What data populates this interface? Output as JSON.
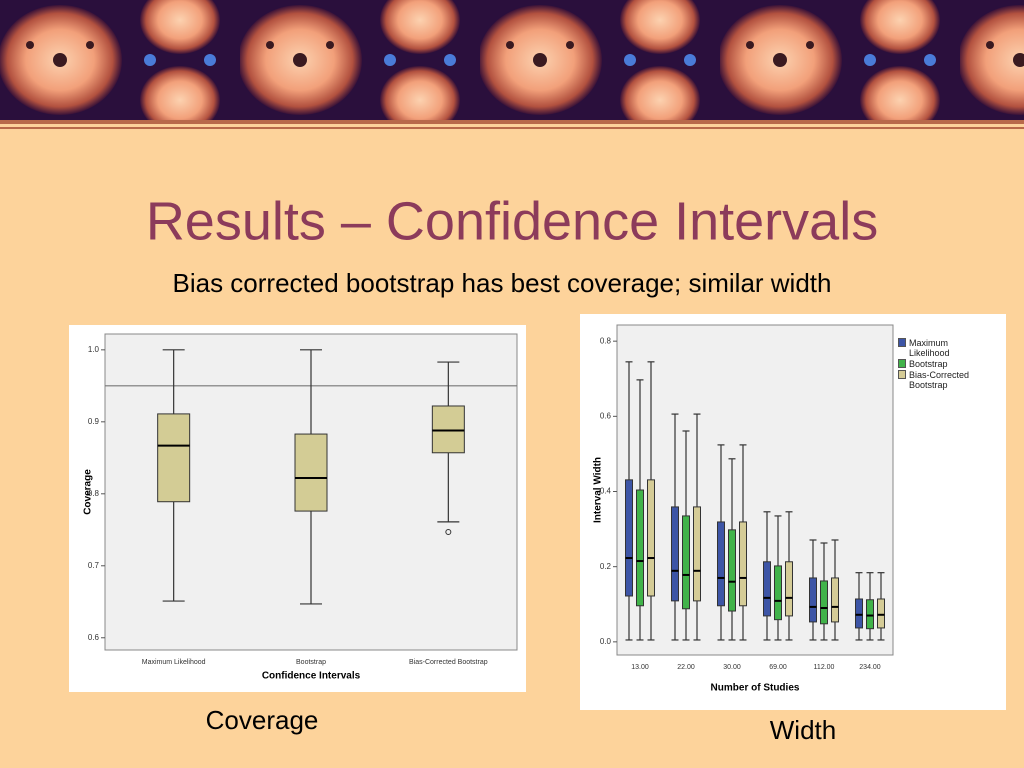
{
  "title": "Results – Confidence Intervals",
  "subtitle": "Bias corrected bootstrap has best coverage; similar width",
  "captions": [
    "Coverage",
    "Width"
  ],
  "chart_data": [
    {
      "type": "box",
      "x_label": "Confidence Intervals",
      "y_label": "Coverage",
      "categories": [
        "Maximum Likelihood",
        "Bootstrap",
        "Bias-Corrected Bootstrap"
      ],
      "series": [
        {
          "color": "#d3cc95",
          "values": [
            {
              "min": 0.651,
              "q1": 0.789,
              "median": 0.867,
              "q3": 0.911,
              "max": 1.0
            },
            {
              "min": 0.647,
              "q1": 0.776,
              "median": 0.822,
              "q3": 0.883,
              "max": 1.0
            },
            {
              "min": 0.761,
              "q1": 0.857,
              "median": 0.888,
              "q3": 0.922,
              "max": 0.983
            }
          ],
          "outliers": [
            [],
            [],
            [
              0.747
            ]
          ]
        }
      ],
      "reference_line": 0.95,
      "ylim": [
        0.583,
        1.022
      ],
      "yticks": [
        0.6,
        0.7,
        0.8,
        0.9,
        {
          "value": 1,
          "label": "1.0"
        }
      ]
    },
    {
      "type": "box",
      "x_label": "Number of Studies",
      "y_label": "Interval Width",
      "categories": [
        "13.00",
        "22.00",
        "30.00",
        "69.00",
        "112.00",
        "234.00"
      ],
      "series": [
        {
          "name": "Maximum Likelihood",
          "color": "#3d55a6",
          "values": [
            {
              "min": 0.005,
              "q1": 0.122,
              "median": 0.223,
              "q3": 0.431,
              "max": 0.745
            },
            {
              "min": 0.005,
              "q1": 0.109,
              "median": 0.189,
              "q3": 0.359,
              "max": 0.606
            },
            {
              "min": 0.005,
              "q1": 0.096,
              "median": 0.17,
              "q3": 0.319,
              "max": 0.524
            },
            {
              "min": 0.005,
              "q1": 0.069,
              "median": 0.117,
              "q3": 0.213,
              "max": 0.346
            },
            {
              "min": 0.005,
              "q1": 0.053,
              "median": 0.093,
              "q3": 0.17,
              "max": 0.271
            },
            {
              "min": 0.005,
              "q1": 0.037,
              "median": 0.072,
              "q3": 0.114,
              "max": 0.184
            }
          ]
        },
        {
          "name": "Bootstrap",
          "color": "#41b34a",
          "values": [
            {
              "min": 0.005,
              "q1": 0.096,
              "median": 0.215,
              "q3": 0.404,
              "max": 0.697
            },
            {
              "min": 0.005,
              "q1": 0.088,
              "median": 0.178,
              "q3": 0.335,
              "max": 0.561
            },
            {
              "min": 0.005,
              "q1": 0.082,
              "median": 0.16,
              "q3": 0.298,
              "max": 0.487
            },
            {
              "min": 0.005,
              "q1": 0.059,
              "median": 0.109,
              "q3": 0.202,
              "max": 0.335
            },
            {
              "min": 0.005,
              "q1": 0.048,
              "median": 0.09,
              "q3": 0.162,
              "max": 0.263
            },
            {
              "min": 0.005,
              "q1": 0.035,
              "median": 0.07,
              "q3": 0.112,
              "max": 0.184
            }
          ]
        },
        {
          "name": "Bias-Corrected Bootstrap",
          "color": "#d5cc97",
          "values": [
            {
              "min": 0.005,
              "q1": 0.122,
              "median": 0.223,
              "q3": 0.431,
              "max": 0.745
            },
            {
              "min": 0.005,
              "q1": 0.109,
              "median": 0.189,
              "q3": 0.359,
              "max": 0.606
            },
            {
              "min": 0.005,
              "q1": 0.096,
              "median": 0.17,
              "q3": 0.319,
              "max": 0.524
            },
            {
              "min": 0.005,
              "q1": 0.069,
              "median": 0.117,
              "q3": 0.213,
              "max": 0.346
            },
            {
              "min": 0.005,
              "q1": 0.053,
              "median": 0.093,
              "q3": 0.17,
              "max": 0.271
            },
            {
              "min": 0.005,
              "q1": 0.037,
              "median": 0.072,
              "q3": 0.114,
              "max": 0.184
            }
          ]
        }
      ],
      "ylim": [
        -0.035,
        0.843
      ],
      "yticks": [
        {
          "value": 0,
          "label": "0.0"
        },
        0.2,
        0.4,
        0.6,
        0.8
      ]
    }
  ]
}
